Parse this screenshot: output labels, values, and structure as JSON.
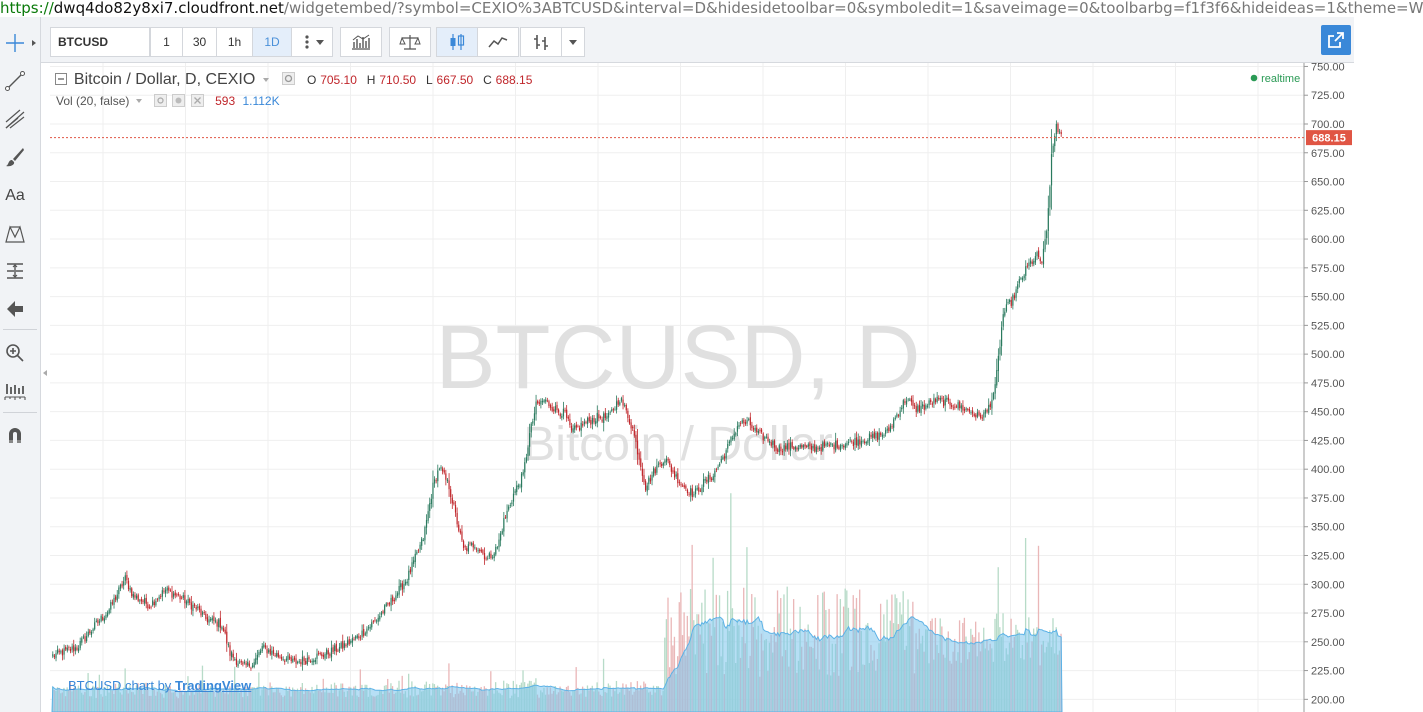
{
  "browser": {
    "url_scheme": "https://",
    "url_host": "dwq4do82y8xi7.cloudfront.net",
    "url_path": "/widgetembed/?symbol=CEXIO%3ABTCUSD&interval=D&hidesidetoolbar=0&symboledit=1&saveimage=0&toolbarbg=f1f3f6&hideideas=1&theme=W"
  },
  "toolbar": {
    "symbol": "BTCUSD",
    "intervals": [
      "1",
      "30",
      "1h",
      "1D"
    ],
    "active_interval": "1D"
  },
  "left_toolbar": {
    "text_tool_label": "Aa"
  },
  "legend": {
    "title": "Bitcoin / Dollar, D, CEXIO",
    "o_label": "O",
    "o_value": "705.10",
    "h_label": "H",
    "h_value": "710.50",
    "l_label": "L",
    "l_value": "667.50",
    "c_label": "C",
    "c_value": "688.15",
    "vol_label": "Vol (20, false)",
    "vol_value": "593",
    "vol_ma_value": "1.112K",
    "realtime": "realtime"
  },
  "watermark": {
    "line1": "BTCUSD, D",
    "line2": "Bitcoin / Dollar"
  },
  "attribution": {
    "prefix": "BTCUSD chart by",
    "link": "TradingView"
  },
  "colors": {
    "up": "#2a7a5e",
    "down": "#c0262b",
    "vol_up": "#b7dbc8",
    "vol_down": "#eab7b8",
    "vol_ma": "#7cc4ec",
    "last_price": "#e05544",
    "realtime_dot": "#2a9a55",
    "accent": "#3a88d8"
  },
  "chart_data": {
    "type": "candlestick",
    "ylim": [
      189,
      753
    ],
    "y_ticks": [
      200,
      225,
      250,
      275,
      300,
      325,
      350,
      375,
      400,
      425,
      450,
      475,
      500,
      525,
      550,
      575,
      600,
      625,
      650,
      675,
      700,
      725,
      750
    ],
    "y_tick_labels": [
      "200.00",
      "225.00",
      "250.00",
      "275.00",
      "300.00",
      "325.00",
      "350.00",
      "375.00",
      "400.00",
      "425.00",
      "450.00",
      "475.00",
      "500.00",
      "525.00",
      "550.00",
      "575.00",
      "600.00",
      "625.00",
      "650.00",
      "675.00",
      "700.00",
      "725.00",
      "750.00"
    ],
    "last_price": 688.15,
    "last_price_label": "688.15",
    "close_anchors": [
      [
        0,
        238
      ],
      [
        15,
        245
      ],
      [
        25,
        262
      ],
      [
        35,
        278
      ],
      [
        45,
        305
      ],
      [
        50,
        290
      ],
      [
        60,
        282
      ],
      [
        70,
        295
      ],
      [
        80,
        288
      ],
      [
        90,
        278
      ],
      [
        95,
        270
      ],
      [
        105,
        265
      ],
      [
        110,
        240
      ],
      [
        118,
        228
      ],
      [
        125,
        232
      ],
      [
        130,
        245
      ],
      [
        140,
        238
      ],
      [
        150,
        232
      ],
      [
        160,
        236
      ],
      [
        170,
        240
      ],
      [
        180,
        246
      ],
      [
        190,
        255
      ],
      [
        200,
        268
      ],
      [
        210,
        285
      ],
      [
        220,
        305
      ],
      [
        230,
        340
      ],
      [
        236,
        385
      ],
      [
        240,
        402
      ],
      [
        246,
        385
      ],
      [
        250,
        360
      ],
      [
        255,
        330
      ],
      [
        262,
        335
      ],
      [
        270,
        322
      ],
      [
        276,
        332
      ],
      [
        280,
        355
      ],
      [
        286,
        378
      ],
      [
        292,
        395
      ],
      [
        296,
        430
      ],
      [
        300,
        455
      ],
      [
        305,
        460
      ],
      [
        312,
        452
      ],
      [
        318,
        448
      ],
      [
        322,
        432
      ],
      [
        330,
        440
      ],
      [
        338,
        445
      ],
      [
        345,
        445
      ],
      [
        352,
        462
      ],
      [
        356,
        450
      ],
      [
        360,
        435
      ],
      [
        364,
        410
      ],
      [
        368,
        385
      ],
      [
        374,
        400
      ],
      [
        380,
        410
      ],
      [
        386,
        395
      ],
      [
        392,
        385
      ],
      [
        398,
        378
      ],
      [
        404,
        388
      ],
      [
        410,
        395
      ],
      [
        416,
        410
      ],
      [
        420,
        422
      ],
      [
        426,
        440
      ],
      [
        432,
        440
      ],
      [
        438,
        430
      ],
      [
        444,
        426
      ],
      [
        450,
        418
      ],
      [
        460,
        420
      ],
      [
        470,
        418
      ],
      [
        480,
        420
      ],
      [
        490,
        422
      ],
      [
        500,
        425
      ],
      [
        510,
        428
      ],
      [
        518,
        432
      ],
      [
        525,
        450
      ],
      [
        530,
        462
      ],
      [
        535,
        452
      ],
      [
        542,
        455
      ],
      [
        548,
        460
      ],
      [
        555,
        458
      ],
      [
        562,
        455
      ],
      [
        570,
        450
      ],
      [
        575,
        445
      ],
      [
        580,
        450
      ],
      [
        585,
        470
      ],
      [
        590,
        535
      ],
      [
        596,
        548
      ],
      [
        600,
        562
      ],
      [
        606,
        578
      ],
      [
        611,
        585
      ],
      [
        614,
        580
      ],
      [
        617,
        605
      ],
      [
        620,
        670
      ],
      [
        623,
        700
      ],
      [
        626,
        688
      ]
    ],
    "num_bars": 627,
    "volume_ylim": [
      0,
      1800
    ]
  }
}
